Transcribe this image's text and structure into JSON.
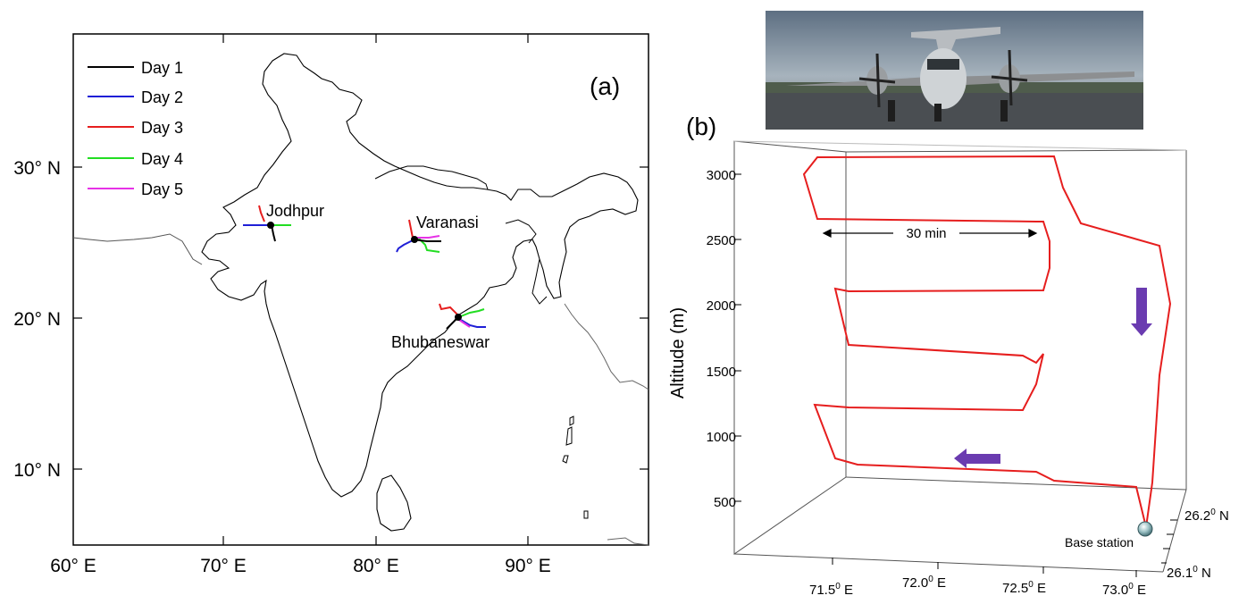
{
  "panel_a": {
    "label": "(a)",
    "lat_ticks": [
      "30° N",
      "20° N",
      "10° N"
    ],
    "lon_ticks": [
      "60° E",
      "70° E",
      "80° E",
      "90° E"
    ],
    "legend": [
      {
        "label": "Day 1",
        "color": "#000000"
      },
      {
        "label": "Day 2",
        "color": "#1f1fd6"
      },
      {
        "label": "Day 3",
        "color": "#e61e1e"
      },
      {
        "label": "Day 4",
        "color": "#22dd22"
      },
      {
        "label": "Day 5",
        "color": "#e632e6"
      }
    ],
    "sites": [
      "Jodhpur",
      "Varanasi",
      "Bhubaneswar"
    ]
  },
  "panel_b": {
    "label": "(b)",
    "photo": "aircraft-on-runway",
    "ylabel": "Altitude (m)",
    "alt_ticks": [
      "3000",
      "2500",
      "2000",
      "1500",
      "1000",
      "500"
    ],
    "lon_ticks": [
      "71.5",
      "72.0",
      "72.5",
      "73.0"
    ],
    "lon_unit": "E",
    "lat_ticks": [
      "26.2",
      "26.1"
    ],
    "lat_unit": "N",
    "degree_sup": "0",
    "leg_annotation": "30 min",
    "base_station": "Base station",
    "track_color": "#e61e1e",
    "arrow_color": "#6a3bb0"
  }
}
